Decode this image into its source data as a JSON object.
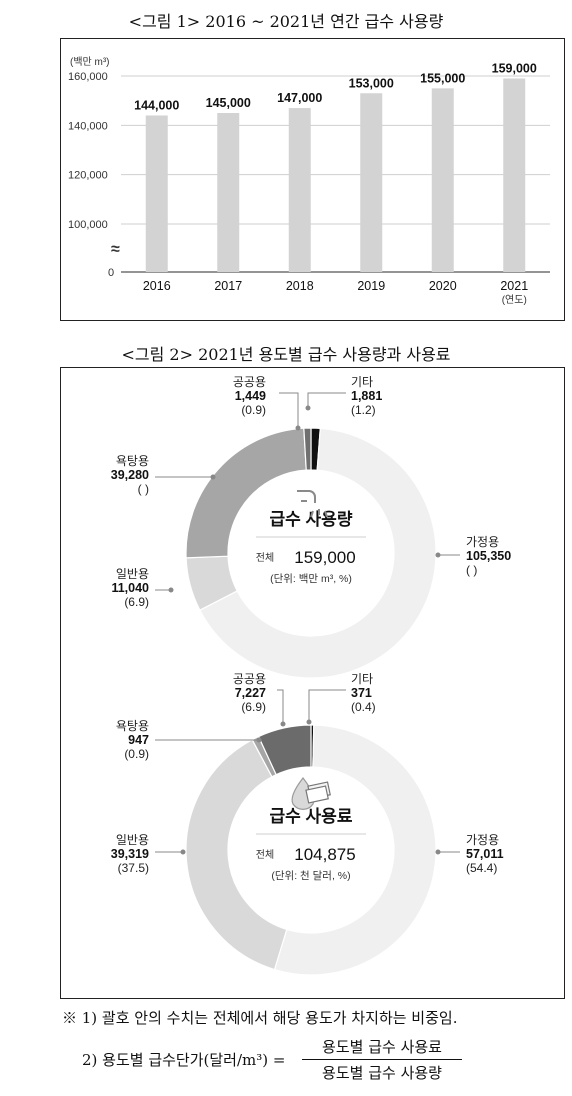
{
  "figure1": {
    "title": "<그림 1> 2016 ~ 2021년 연간 급수 사용량",
    "chart_data": {
      "type": "bar",
      "title": "<그림 1> 2016 ~ 2021년 연간 급수 사용량",
      "ylabel": "(백만 m³)",
      "xlabel": "(연도)",
      "categories": [
        "2016",
        "2017",
        "2018",
        "2019",
        "2020",
        "2021"
      ],
      "values": [
        144000,
        145000,
        147000,
        153000,
        155000,
        159000
      ],
      "value_labels": [
        "144,000",
        "145,000",
        "147,000",
        "153,000",
        "155,000",
        "159,000"
      ],
      "y_ticks": [
        "160,000",
        "140,000",
        "120,000",
        "100,000",
        "0"
      ],
      "ylim": [
        100000,
        160000
      ],
      "axis_break": true,
      "break_symbol": "≈",
      "grid": true,
      "bar_color": "#d3d3d3"
    }
  },
  "figure2": {
    "title": "<그림 2> 2021년 용도별 급수 사용량과 사용료",
    "chart_data": [
      {
        "type": "pie",
        "donut": true,
        "center_title": "급수 사용량",
        "total_label": "전체",
        "total": "159,000",
        "unit": "(단위: 백만 m³, %)",
        "segments": [
          {
            "name": "가정용",
            "value": 105350,
            "value_text": "105,350",
            "pct_text": "(      )",
            "color": "#f0f0f0"
          },
          {
            "name": "일반용",
            "value": 11040,
            "value_text": "11,040",
            "pct_text": "(6.9)",
            "color": "#d9d9d9"
          },
          {
            "name": "욕탕용",
            "value": 39280,
            "value_text": "39,280",
            "pct_text": "(      )",
            "color": "#a6a6a6"
          },
          {
            "name": "공공용",
            "value": 1449,
            "value_text": "1,449",
            "pct_text": "(0.9)",
            "color": "#707070"
          },
          {
            "name": "기타",
            "value": 1881,
            "value_text": "1,881",
            "pct_text": "(1.2)",
            "color": "#111111"
          }
        ]
      },
      {
        "type": "pie",
        "donut": true,
        "center_title": "급수 사용료",
        "total_label": "전체",
        "total": "104,875",
        "unit": "(단위: 천 달러, %)",
        "segments": [
          {
            "name": "가정용",
            "value": 57011,
            "value_text": "57,011",
            "pct_text": "(54.4)",
            "color": "#f0f0f0"
          },
          {
            "name": "일반용",
            "value": 39319,
            "value_text": "39,319",
            "pct_text": "(37.5)",
            "color": "#d9d9d9"
          },
          {
            "name": "욕탕용",
            "value": 947,
            "value_text": "947",
            "pct_text": "(0.9)",
            "color": "#a6a6a6"
          },
          {
            "name": "공공용",
            "value": 7227,
            "value_text": "7,227",
            "pct_text": "(6.9)",
            "color": "#6b6b6b"
          },
          {
            "name": "기타",
            "value": 371,
            "value_text": "371",
            "pct_text": "(0.4)",
            "color": "#111111"
          }
        ]
      }
    ]
  },
  "notes": {
    "note1": "※ 1) 괄호 안의 수치는 전체에서 해당 용도가 차지하는 비중임.",
    "note2_label": "2) 용도별 급수단가(달러/m³) =",
    "note2_numerator": "용도별 급수 사용료",
    "note2_denominator": "용도별 급수 사용량"
  }
}
